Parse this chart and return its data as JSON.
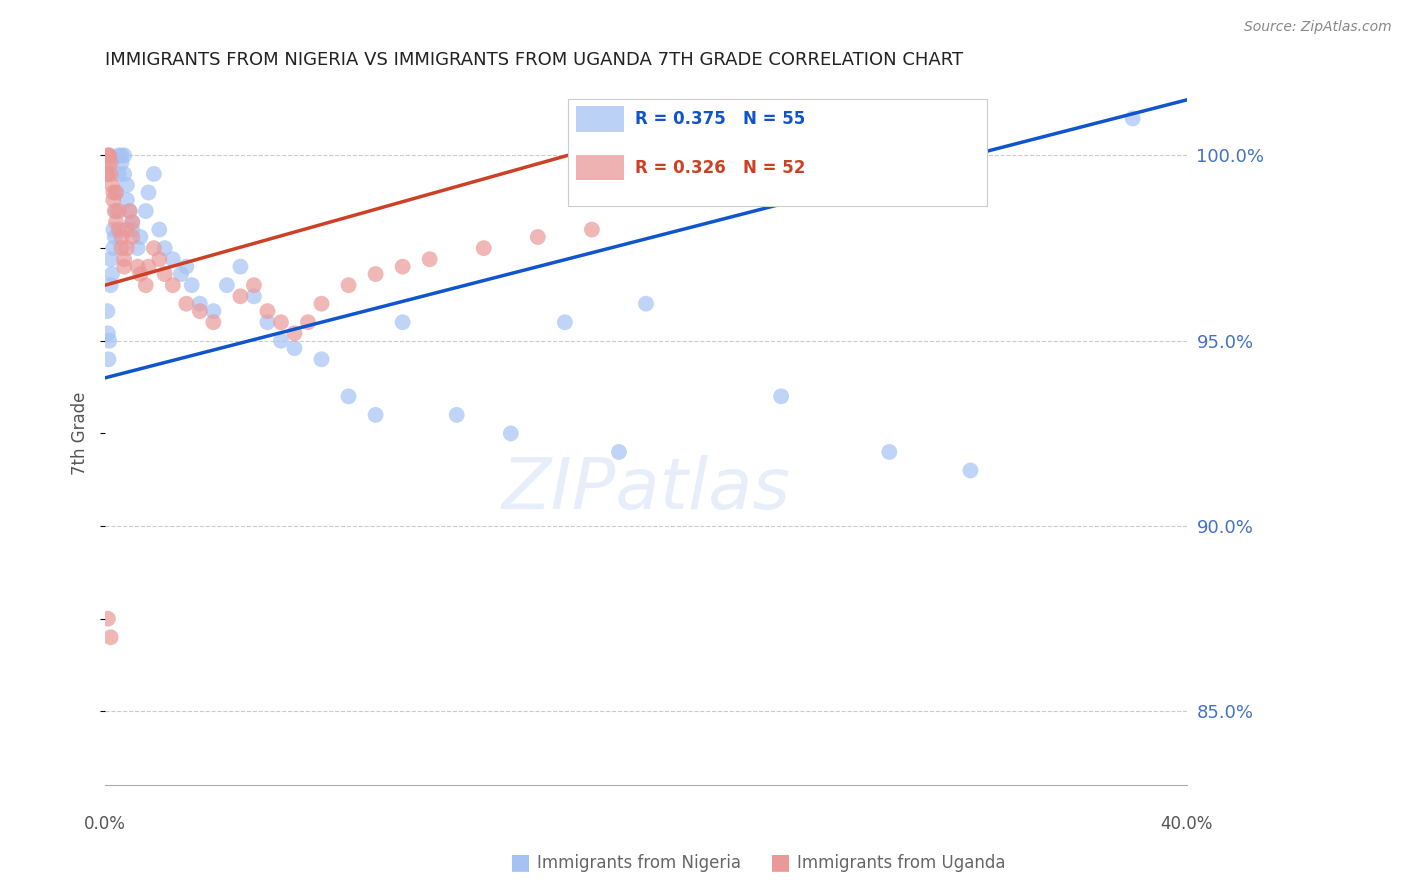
{
  "title": "IMMIGRANTS FROM NIGERIA VS IMMIGRANTS FROM UGANDA 7TH GRADE CORRELATION CHART",
  "source": "Source: ZipAtlas.com",
  "ylabel": "7th Grade",
  "nigeria_R": 0.375,
  "nigeria_N": 55,
  "uganda_R": 0.326,
  "uganda_N": 52,
  "nigeria_color": "#a4c2f4",
  "uganda_color": "#ea9999",
  "nigeria_line_color": "#1155cc",
  "uganda_line_color": "#cc4125",
  "legend_nigeria_label": "Immigrants from Nigeria",
  "legend_uganda_label": "Immigrants from Uganda",
  "y_ticks": [
    85.0,
    90.0,
    95.0,
    100.0
  ],
  "xlim": [
    0.0,
    0.4
  ],
  "ylim": [
    83.0,
    102.0
  ],
  "nigeria_line_x0": 0.0,
  "nigeria_line_y0": 94.0,
  "nigeria_line_x1": 0.4,
  "nigeria_line_y1": 101.5,
  "uganda_line_x0": 0.0,
  "uganda_line_y0": 96.5,
  "uganda_line_x1": 0.21,
  "uganda_line_y1": 100.8,
  "watermark": "ZIPatlas",
  "nigeria_x": [
    0.0008,
    0.001,
    0.0012,
    0.0015,
    0.002,
    0.002,
    0.0025,
    0.003,
    0.003,
    0.0035,
    0.004,
    0.004,
    0.005,
    0.005,
    0.006,
    0.006,
    0.007,
    0.007,
    0.008,
    0.008,
    0.009,
    0.01,
    0.01,
    0.012,
    0.013,
    0.015,
    0.016,
    0.018,
    0.02,
    0.022,
    0.025,
    0.028,
    0.03,
    0.032,
    0.035,
    0.04,
    0.045,
    0.05,
    0.055,
    0.06,
    0.065,
    0.07,
    0.08,
    0.09,
    0.1,
    0.11,
    0.13,
    0.15,
    0.17,
    0.19,
    0.2,
    0.25,
    0.29,
    0.32,
    0.38
  ],
  "nigeria_y": [
    95.8,
    95.2,
    94.5,
    95.0,
    96.5,
    97.2,
    96.8,
    97.5,
    98.0,
    97.8,
    98.5,
    99.0,
    99.5,
    100.0,
    100.0,
    99.8,
    100.0,
    99.5,
    99.2,
    98.8,
    98.5,
    98.0,
    98.2,
    97.5,
    97.8,
    98.5,
    99.0,
    99.5,
    98.0,
    97.5,
    97.2,
    96.8,
    97.0,
    96.5,
    96.0,
    95.8,
    96.5,
    97.0,
    96.2,
    95.5,
    95.0,
    94.8,
    94.5,
    93.5,
    93.0,
    95.5,
    93.0,
    92.5,
    95.5,
    92.0,
    96.0,
    93.5,
    92.0,
    91.5,
    101.0
  ],
  "uganda_x": [
    0.0005,
    0.0008,
    0.001,
    0.001,
    0.0012,
    0.0015,
    0.002,
    0.002,
    0.0025,
    0.003,
    0.003,
    0.0035,
    0.004,
    0.004,
    0.005,
    0.005,
    0.006,
    0.006,
    0.007,
    0.007,
    0.008,
    0.008,
    0.009,
    0.01,
    0.01,
    0.012,
    0.013,
    0.015,
    0.016,
    0.018,
    0.02,
    0.022,
    0.025,
    0.03,
    0.035,
    0.04,
    0.05,
    0.055,
    0.06,
    0.065,
    0.07,
    0.075,
    0.08,
    0.09,
    0.1,
    0.11,
    0.12,
    0.14,
    0.16,
    0.18,
    0.001,
    0.002
  ],
  "uganda_y": [
    99.5,
    99.8,
    100.0,
    99.5,
    100.0,
    100.0,
    99.8,
    99.5,
    99.2,
    99.0,
    98.8,
    98.5,
    98.2,
    99.0,
    98.5,
    98.0,
    97.8,
    97.5,
    97.2,
    97.0,
    97.5,
    98.0,
    98.5,
    97.8,
    98.2,
    97.0,
    96.8,
    96.5,
    97.0,
    97.5,
    97.2,
    96.8,
    96.5,
    96.0,
    95.8,
    95.5,
    96.2,
    96.5,
    95.8,
    95.5,
    95.2,
    95.5,
    96.0,
    96.5,
    96.8,
    97.0,
    97.2,
    97.5,
    97.8,
    98.0,
    87.5,
    87.0
  ]
}
